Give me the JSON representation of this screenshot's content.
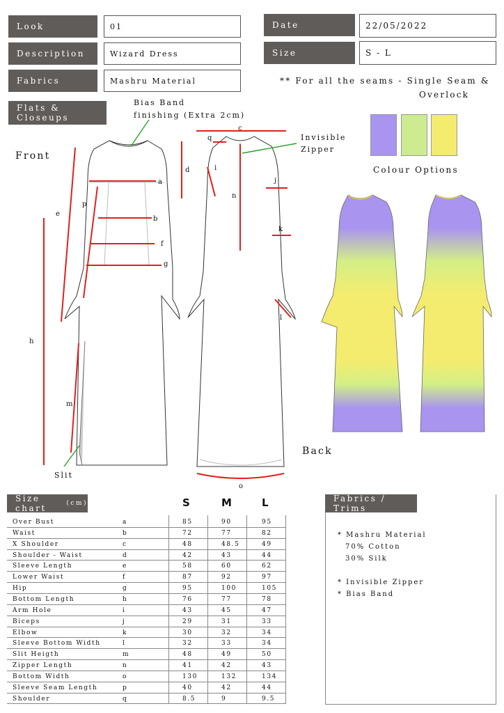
{
  "header": {
    "look_label": "Look",
    "look_value": "01",
    "description_label": "Description",
    "description_value": "Wizard Dress",
    "fabrics_label": "Fabrics",
    "fabrics_value": "Mashru Material",
    "date_label": "Date",
    "date_value": "22/05/2022",
    "size_label": "Size",
    "size_value": "S - L",
    "seam_note_line1": "** For all the seams - Single Seam &",
    "seam_note_line2": "Overlock"
  },
  "flats": {
    "title": "Flats & Closeups",
    "front_label": "Front",
    "back_label": "Back",
    "bias_note_line1": "Bias Band",
    "bias_note_line2": "finishing (Extra 2cm)",
    "zipper_note_line1": "Invisible",
    "zipper_note_line2": "Zipper",
    "slit_label": "Slit",
    "markers": [
      "a",
      "b",
      "c",
      "d",
      "e",
      "f",
      "g",
      "h",
      "i",
      "j",
      "k",
      "l",
      "m",
      "n",
      "o",
      "p",
      "q"
    ]
  },
  "colours": {
    "title": "Colour Options",
    "swatches": [
      "#a994f0",
      "#cdeb8f",
      "#f4ec6e"
    ]
  },
  "size_chart": {
    "title": "Size chart",
    "unit": "(cm)",
    "sizes": [
      "S",
      "M",
      "L"
    ],
    "rows": [
      {
        "name": "Over Bust",
        "code": "a",
        "s": "85",
        "m": "90",
        "l": "95"
      },
      {
        "name": "Waist",
        "code": "b",
        "s": "72",
        "m": "77",
        "l": "82"
      },
      {
        "name": "X Shoulder",
        "code": "c",
        "s": "48",
        "m": "48.5",
        "l": "49"
      },
      {
        "name": "Shoulder - Waist",
        "code": "d",
        "s": "42",
        "m": "43",
        "l": "44"
      },
      {
        "name": "Sleeve Length",
        "code": "e",
        "s": "58",
        "m": "60",
        "l": "62"
      },
      {
        "name": "Lower Waist",
        "code": "f",
        "s": "87",
        "m": "92",
        "l": "97"
      },
      {
        "name": "Hip",
        "code": "g",
        "s": "95",
        "m": "100",
        "l": "105"
      },
      {
        "name": "Bottom Length",
        "code": "h",
        "s": "76",
        "m": "77",
        "l": "78"
      },
      {
        "name": "Arm Hole",
        "code": "i",
        "s": "43",
        "m": "45",
        "l": "47"
      },
      {
        "name": "Biceps",
        "code": "j",
        "s": "29",
        "m": "31",
        "l": "33"
      },
      {
        "name": "Elbow",
        "code": "k",
        "s": "30",
        "m": "32",
        "l": "34"
      },
      {
        "name": "Sleeve Bottom Width",
        "code": "l",
        "s": "32",
        "m": "33",
        "l": "34"
      },
      {
        "name": "Slit Heigth",
        "code": "m",
        "s": "48",
        "m": "49",
        "l": "50"
      },
      {
        "name": "Zipper Length",
        "code": "n",
        "s": "41",
        "m": "42",
        "l": "43"
      },
      {
        "name": "Bottom Width",
        "code": "o",
        "s": "130",
        "m": "132",
        "l": "134"
      },
      {
        "name": "Sleeve Seam Length",
        "code": "p",
        "s": "40",
        "m": "42",
        "l": "44"
      },
      {
        "name": "Shoulder",
        "code": "q",
        "s": "8.5",
        "m": "9",
        "l": "9.5"
      }
    ]
  },
  "fabrics_trims": {
    "title": "Fabrics / Trims",
    "lines": [
      "* Mashru Material",
      "70% Cotton",
      "30% Silk",
      "",
      "* Invisible Zipper",
      "* Bias Band"
    ]
  },
  "colors": {
    "label_bg": "#605c59",
    "measure_line": "#e0201c",
    "note_line": "#2aa02a",
    "dress_purple": "#a994f0",
    "dress_green": "#cdeb8f",
    "dress_yellow": "#f4ec6e"
  }
}
